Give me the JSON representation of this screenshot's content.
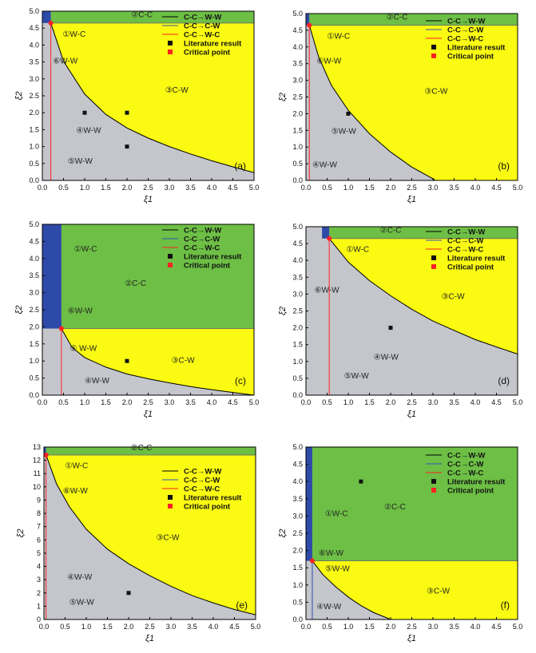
{
  "legend_entries": [
    {
      "label": "C-C→W-W",
      "kind": "line",
      "color": "#000000"
    },
    {
      "label": "C-C→C-W",
      "kind": "line",
      "color": "#3355bb"
    },
    {
      "label": "C-C→W-C",
      "kind": "line",
      "color": "#ff2222"
    },
    {
      "label": "Literature result",
      "kind": "square",
      "color": "#111111"
    },
    {
      "label": "Critical point",
      "kind": "square",
      "color": "#ff2222"
    }
  ],
  "colors": {
    "green": "#6dbf45",
    "blue": "#2e4aa8",
    "yellow": "#fafa12",
    "gray": "#c4c6cc",
    "boundary": "#000000",
    "red_line": "#ff2222"
  },
  "chart_data": [
    {
      "panel": "a",
      "type": "area",
      "xlabel": "ξ1",
      "ylabel": "ξ2",
      "xlim": [
        0,
        5
      ],
      "ylim": [
        0,
        5
      ],
      "xticks": [
        "0.0",
        "0.5",
        "1.0",
        "1.5",
        "2.0",
        "2.5",
        "3.0",
        "3.5",
        "4.0",
        "4.5",
        "5.0"
      ],
      "yticks": [
        "0.0",
        "0.5",
        "1.0",
        "1.5",
        "2.0",
        "2.5",
        "3.0",
        "3.5",
        "4.0",
        "4.5",
        "5.0"
      ],
      "horizontal_boundary_y": 4.65,
      "vertical_boundary_x": 0.2,
      "vertical_line_color": "red",
      "ww_curve": [
        [
          0.2,
          4.65
        ],
        [
          0.5,
          3.52
        ],
        [
          1.0,
          2.55
        ],
        [
          1.5,
          1.95
        ],
        [
          2.0,
          1.55
        ],
        [
          2.5,
          1.25
        ],
        [
          3.0,
          1.0
        ],
        [
          3.5,
          0.78
        ],
        [
          4.0,
          0.58
        ],
        [
          4.5,
          0.4
        ],
        [
          5.0,
          0.23
        ]
      ],
      "left_strip": {
        "x": [
          0,
          0.2
        ],
        "y": [
          4.65,
          5.0
        ]
      },
      "critical_point": [
        0.2,
        4.65
      ],
      "literature_points": [
        [
          1.0,
          2.0
        ],
        [
          2.0,
          2.0
        ],
        [
          2.0,
          1.0
        ]
      ],
      "region_labels": [
        {
          "text": "②C-C",
          "x": 2.1,
          "y": 4.82
        },
        {
          "text": "①W-C",
          "x": 0.48,
          "y": 4.25
        },
        {
          "text": "⑥W-W",
          "x": 0.25,
          "y": 3.45
        },
        {
          "text": "③C-W",
          "x": 2.9,
          "y": 2.6
        },
        {
          "text": "④W-W",
          "x": 0.8,
          "y": 1.4
        },
        {
          "text": "⑤W-W",
          "x": 0.6,
          "y": 0.5
        }
      ],
      "panel_label": "(a)",
      "legend": true
    },
    {
      "panel": "b",
      "type": "area",
      "xlabel": "ξ1",
      "ylabel": "ξ2",
      "xlim": [
        0,
        5
      ],
      "ylim": [
        0,
        5
      ],
      "xticks": [
        "0.0",
        "0.5",
        "1.0",
        "1.5",
        "2.0",
        "2.5",
        "3.0",
        "3.5",
        "4.0",
        "4.5",
        "5.0"
      ],
      "yticks": [
        "0.0",
        "0.5",
        "1.0",
        "1.5",
        "2.0",
        "2.5",
        "3.0",
        "3.5",
        "4.0",
        "4.5",
        "5.0"
      ],
      "horizontal_boundary_y": 4.65,
      "vertical_boundary_x": 0.08,
      "vertical_line_color": "red",
      "ww_curve": [
        [
          0.08,
          4.65
        ],
        [
          0.3,
          3.7
        ],
        [
          0.6,
          2.85
        ],
        [
          1.0,
          2.1
        ],
        [
          1.5,
          1.4
        ],
        [
          2.0,
          0.85
        ],
        [
          2.5,
          0.4
        ],
        [
          3.0,
          0.05
        ],
        [
          3.05,
          0.0
        ]
      ],
      "left_strip": {
        "x": [
          0,
          0.08
        ],
        "y": [
          4.65,
          5.0
        ]
      },
      "critical_point": [
        0.08,
        4.65
      ],
      "literature_points": [
        [
          1.0,
          2.0
        ]
      ],
      "region_labels": [
        {
          "text": "②C-C",
          "x": 1.9,
          "y": 4.82
        },
        {
          "text": "①W-C",
          "x": 0.5,
          "y": 4.25
        },
        {
          "text": "⑥W-W",
          "x": 0.25,
          "y": 3.5
        },
        {
          "text": "③C-W",
          "x": 2.8,
          "y": 2.6
        },
        {
          "text": "⑤W-W",
          "x": 0.6,
          "y": 1.4
        },
        {
          "text": "④W-W",
          "x": 0.15,
          "y": 0.4
        }
      ],
      "panel_label": "(b)",
      "legend": true
    },
    {
      "panel": "c",
      "type": "area",
      "xlabel": "ξ1",
      "ylabel": "ξ2",
      "xlim": [
        0,
        5
      ],
      "ylim": [
        0,
        5
      ],
      "xticks": [
        "0.0",
        "0.5",
        "1.0",
        "1.5",
        "2.0",
        "2.5",
        "3.0",
        "3.5",
        "4.0",
        "4.5",
        "5.0"
      ],
      "yticks": [
        "0.0",
        "0.5",
        "1.0",
        "1.5",
        "2.0",
        "2.5",
        "3.0",
        "3.5",
        "4.0",
        "4.5",
        "5.0"
      ],
      "horizontal_boundary_y": 1.95,
      "vertical_boundary_x": 0.45,
      "vertical_line_color": "red",
      "ww_curve": [
        [
          0.45,
          1.95
        ],
        [
          0.7,
          1.4
        ],
        [
          1.0,
          1.1
        ],
        [
          1.5,
          0.82
        ],
        [
          2.0,
          0.62
        ],
        [
          2.5,
          0.48
        ],
        [
          3.0,
          0.36
        ],
        [
          3.5,
          0.25
        ],
        [
          4.0,
          0.16
        ],
        [
          4.5,
          0.08
        ],
        [
          5.0,
          0.0
        ]
      ],
      "left_strip": {
        "x": [
          0,
          0.45
        ],
        "y": [
          1.95,
          5.0
        ]
      },
      "critical_point": [
        0.45,
        1.95
      ],
      "literature_points": [
        [
          2.0,
          1.0
        ]
      ],
      "region_labels": [
        {
          "text": "①W-C",
          "x": 0.75,
          "y": 4.2
        },
        {
          "text": "②C-C",
          "x": 1.95,
          "y": 3.2
        },
        {
          "text": "⑥W-W",
          "x": 0.6,
          "y": 2.4
        },
        {
          "text": "⑤ W-W",
          "x": 0.65,
          "y": 1.3
        },
        {
          "text": "③C-W",
          "x": 3.05,
          "y": 0.95
        },
        {
          "text": "④W-W",
          "x": 1.0,
          "y": 0.35
        }
      ],
      "panel_label": "(c)",
      "legend": true
    },
    {
      "panel": "d",
      "type": "area",
      "xlabel": "ξ1",
      "ylabel": "ξ2",
      "xlim": [
        0,
        5
      ],
      "ylim": [
        0,
        5
      ],
      "xticks": [
        "0.0",
        "0.5",
        "1.0",
        "1.5",
        "2.0",
        "2.5",
        "3.0",
        "3.5",
        "4.0",
        "4.5",
        "5.0"
      ],
      "yticks": [
        "0.0",
        "0.5",
        "1.0",
        "1.5",
        "2.0",
        "2.5",
        "3.0",
        "3.5",
        "4.0",
        "4.5",
        "5.0"
      ],
      "horizontal_boundary_y": 4.65,
      "vertical_boundary_x": 0.55,
      "vertical_line_color": "red",
      "ww_curve": [
        [
          0.55,
          4.65
        ],
        [
          1.0,
          3.95
        ],
        [
          1.5,
          3.4
        ],
        [
          2.0,
          2.95
        ],
        [
          2.5,
          2.55
        ],
        [
          3.0,
          2.2
        ],
        [
          3.5,
          1.92
        ],
        [
          4.0,
          1.65
        ],
        [
          4.5,
          1.43
        ],
        [
          5.0,
          1.22
        ]
      ],
      "left_strip": {
        "x": [
          0.38,
          0.55
        ],
        "y": [
          4.65,
          5.0
        ]
      },
      "critical_point": [
        0.55,
        4.65
      ],
      "literature_points": [
        [
          2.0,
          2.0
        ]
      ],
      "region_labels": [
        {
          "text": "②C-C",
          "x": 1.75,
          "y": 4.82
        },
        {
          "text": "①W-C",
          "x": 0.95,
          "y": 4.25
        },
        {
          "text": "⑥W-W",
          "x": 0.2,
          "y": 3.05
        },
        {
          "text": "③C-W",
          "x": 3.2,
          "y": 2.85
        },
        {
          "text": "④W-W",
          "x": 1.6,
          "y": 1.05
        },
        {
          "text": "⑤W-W",
          "x": 0.9,
          "y": 0.5
        }
      ],
      "panel_label": "(d)",
      "legend": true
    },
    {
      "panel": "e",
      "type": "area",
      "xlabel": "ξ1",
      "ylabel": "ξ2",
      "xlim": [
        0,
        5
      ],
      "ylim": [
        0,
        13
      ],
      "xticks": [
        "0.0",
        "0.5",
        "1.0",
        "1.5",
        "2.0",
        "2.5",
        "3.0",
        "3.5",
        "4.0",
        "4.5",
        "5.0"
      ],
      "yticks": [
        "0",
        "1",
        "2",
        "3",
        "4",
        "5",
        "6",
        "7",
        "8",
        "9",
        "10",
        "11",
        "12",
        "13"
      ],
      "horizontal_boundary_y": 12.4,
      "vertical_boundary_x": 0.05,
      "vertical_line_color": "red",
      "ww_curve": [
        [
          0.05,
          12.4
        ],
        [
          0.3,
          10.2
        ],
        [
          0.6,
          8.5
        ],
        [
          1.0,
          6.8
        ],
        [
          1.5,
          5.3
        ],
        [
          2.0,
          4.2
        ],
        [
          2.5,
          3.3
        ],
        [
          3.0,
          2.5
        ],
        [
          3.5,
          1.8
        ],
        [
          4.0,
          1.25
        ],
        [
          4.5,
          0.75
        ],
        [
          5.0,
          0.35
        ]
      ],
      "left_strip": {
        "x": [
          0,
          0.05
        ],
        "y": [
          12.4,
          13.0
        ]
      },
      "critical_point": [
        0.05,
        12.4
      ],
      "literature_points": [
        [
          2.0,
          2.0
        ]
      ],
      "region_labels": [
        {
          "text": "②C-C",
          "x": 2.05,
          "y": 12.75
        },
        {
          "text": "①W-C",
          "x": 0.5,
          "y": 11.4
        },
        {
          "text": "⑥W-W",
          "x": 0.45,
          "y": 9.5
        },
        {
          "text": "③C-W",
          "x": 2.65,
          "y": 6.0
        },
        {
          "text": "④W-W",
          "x": 0.55,
          "y": 3.0
        },
        {
          "text": "⑤W-W",
          "x": 0.6,
          "y": 1.1
        }
      ],
      "panel_label": "(e)",
      "legend": true
    },
    {
      "panel": "f",
      "type": "area",
      "xlabel": "ξ1",
      "ylabel": "ξ2",
      "xlim": [
        0,
        5
      ],
      "ylim": [
        0,
        5
      ],
      "xticks": [
        "0.0",
        "0.5",
        "1.0",
        "1.5",
        "2.0",
        "2.5",
        "3.0",
        "3.5",
        "4.0",
        "4.5",
        "5.0"
      ],
      "yticks": [
        "0.0",
        "0.5",
        "1.0",
        "1.5",
        "2.0",
        "2.5",
        "3.0",
        "3.5",
        "4.0",
        "4.5",
        "5.0"
      ],
      "horizontal_boundary_y": 1.7,
      "vertical_boundary_x": 0.15,
      "vertical_line_color": "blue",
      "ww_curve": [
        [
          0.15,
          1.7
        ],
        [
          0.4,
          1.3
        ],
        [
          0.7,
          0.95
        ],
        [
          1.0,
          0.65
        ],
        [
          1.3,
          0.4
        ],
        [
          1.6,
          0.2
        ],
        [
          2.0,
          0.0
        ]
      ],
      "left_strip": {
        "x": [
          0,
          0.15
        ],
        "y": [
          1.7,
          5.0
        ]
      },
      "critical_point": [
        0.15,
        1.7
      ],
      "literature_points": [
        [
          1.3,
          4.0
        ]
      ],
      "region_labels": [
        {
          "text": "①W-C",
          "x": 0.45,
          "y": 3.0
        },
        {
          "text": "②C-C",
          "x": 1.85,
          "y": 3.2
        },
        {
          "text": "⑥W-W",
          "x": 0.3,
          "y": 1.85
        },
        {
          "text": "⑤W-W",
          "x": 0.45,
          "y": 1.4
        },
        {
          "text": "③C-W",
          "x": 2.85,
          "y": 0.75
        },
        {
          "text": "④W-W",
          "x": 0.25,
          "y": 0.3
        }
      ],
      "panel_label": "(f)",
      "legend": true
    }
  ]
}
